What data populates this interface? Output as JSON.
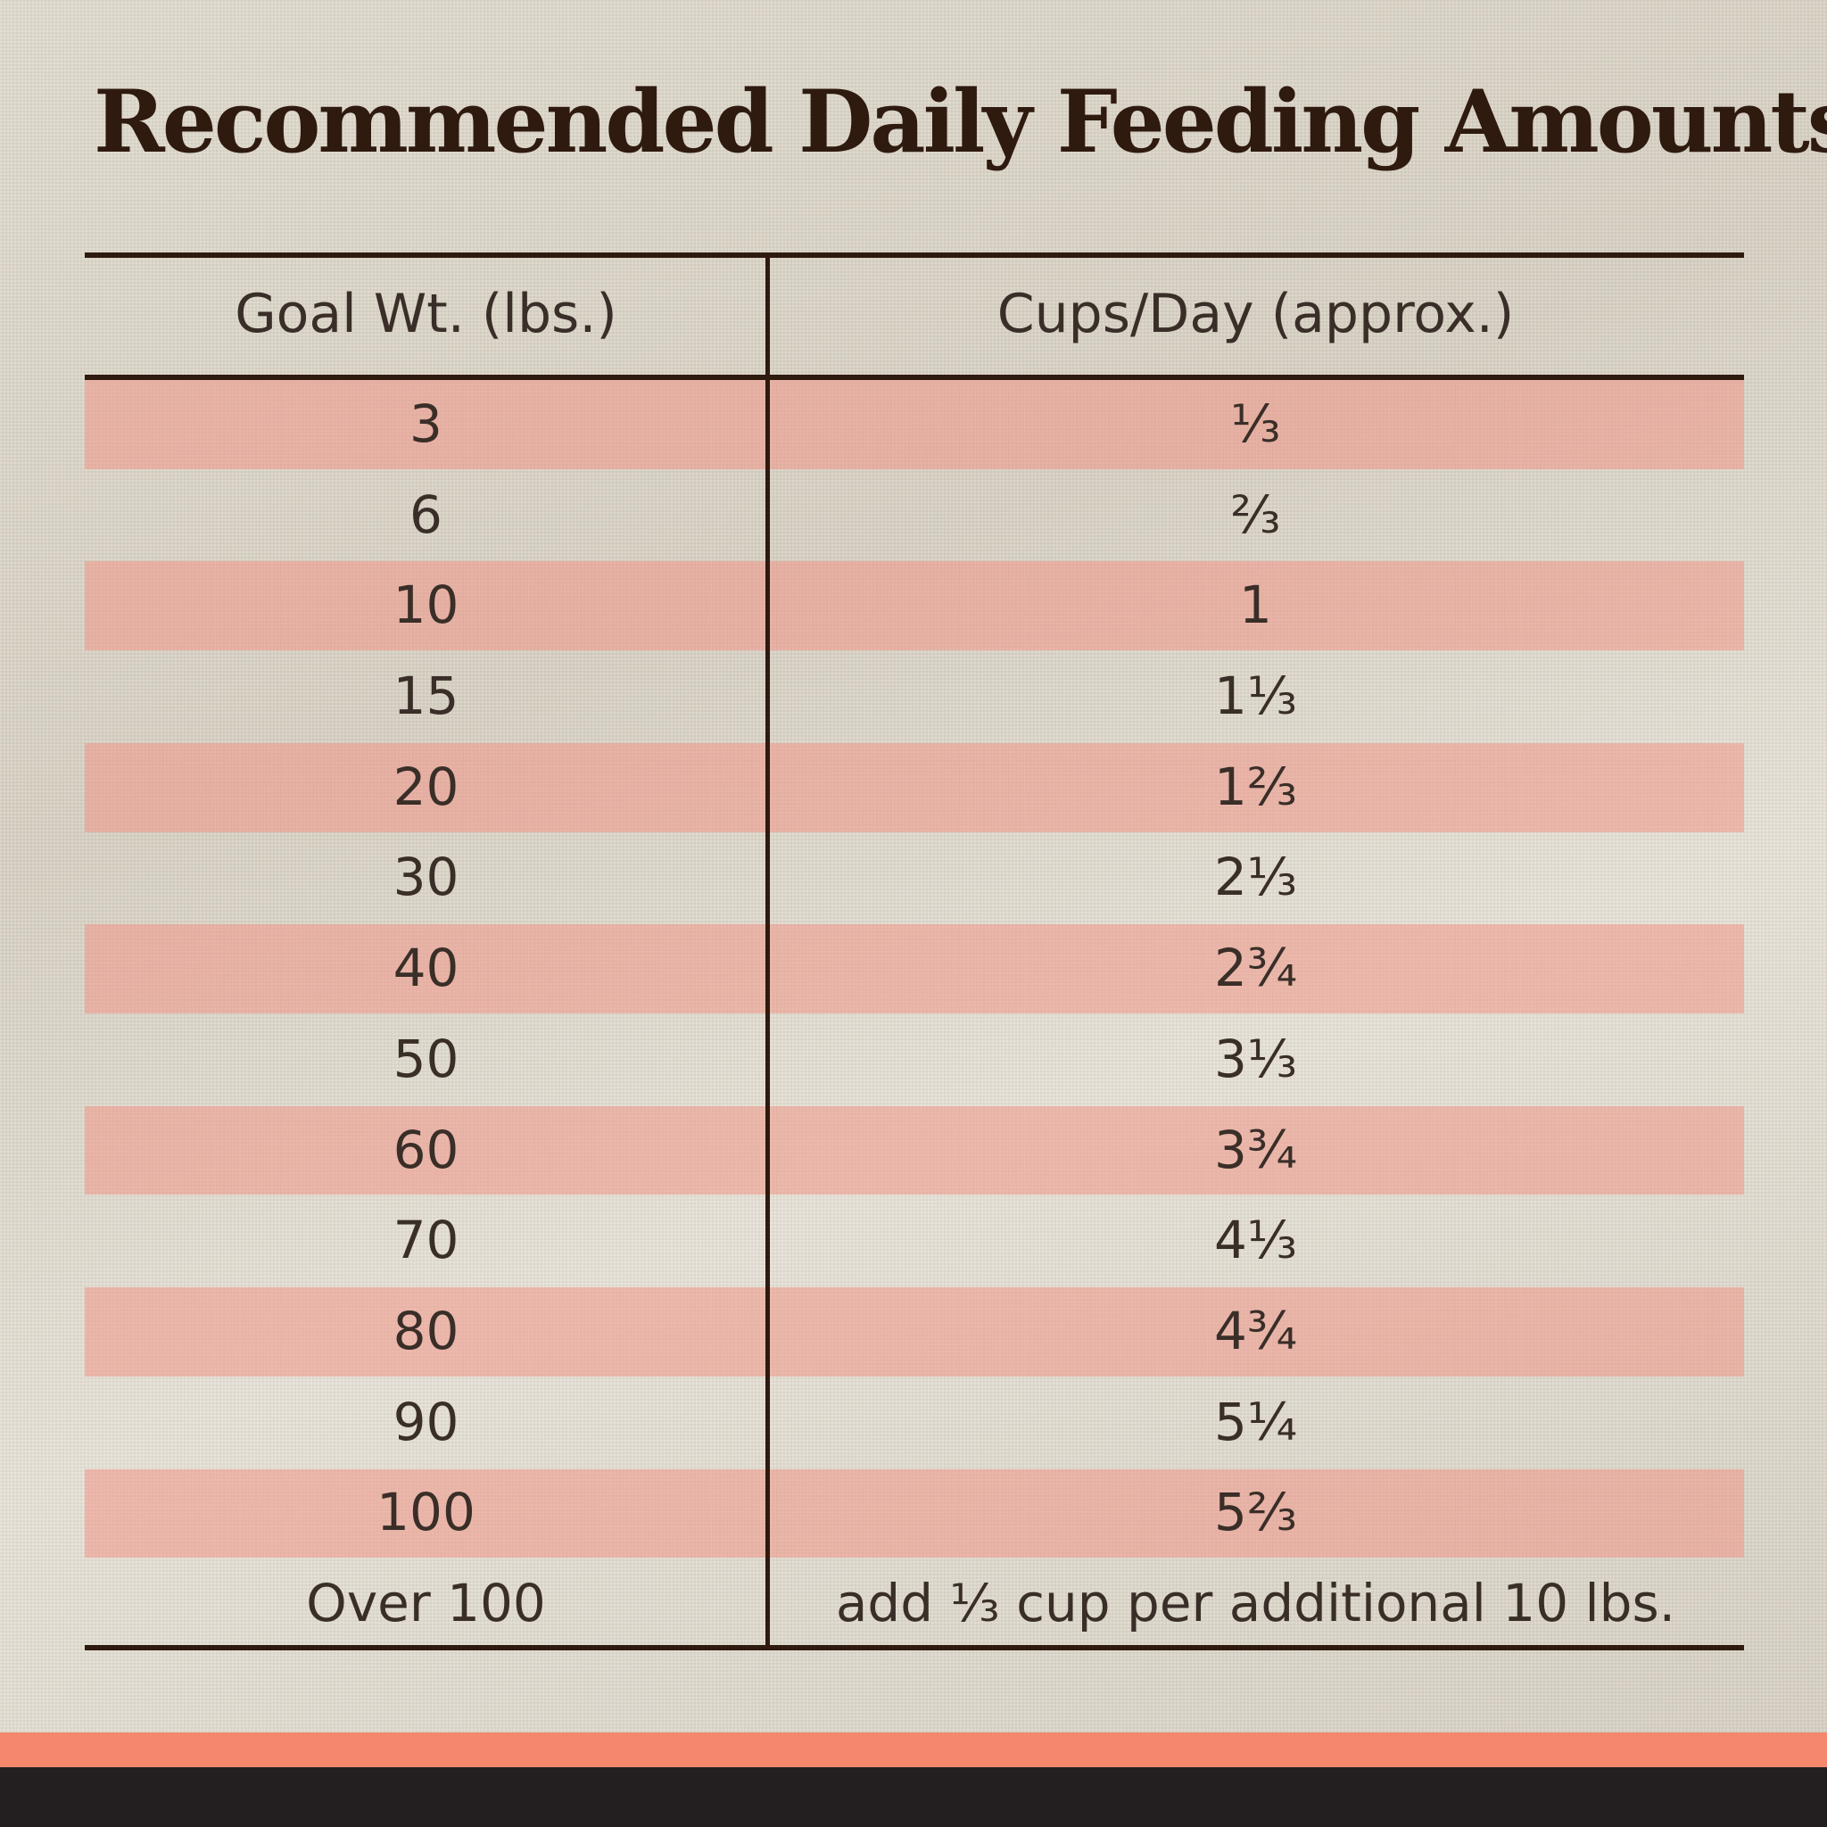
{
  "header": {
    "title": "Recommended Daily Feeding Amounts:"
  },
  "table": {
    "columns": [
      "Goal Wt. (lbs.)",
      "Cups/Day (approx.)"
    ],
    "rows": [
      [
        "3",
        "⅓"
      ],
      [
        "6",
        "⅔"
      ],
      [
        "10",
        "1"
      ],
      [
        "15",
        "1⅓"
      ],
      [
        "20",
        "1⅔"
      ],
      [
        "30",
        "2⅓"
      ],
      [
        "40",
        "2¾"
      ],
      [
        "50",
        "3⅓"
      ],
      [
        "60",
        "3¾"
      ],
      [
        "70",
        "4⅓"
      ],
      [
        "80",
        "4¾"
      ],
      [
        "90",
        "5¼"
      ],
      [
        "100",
        "5⅔"
      ],
      [
        "Over 100",
        "add ⅓ cup per additional 10 lbs."
      ]
    ]
  }
}
